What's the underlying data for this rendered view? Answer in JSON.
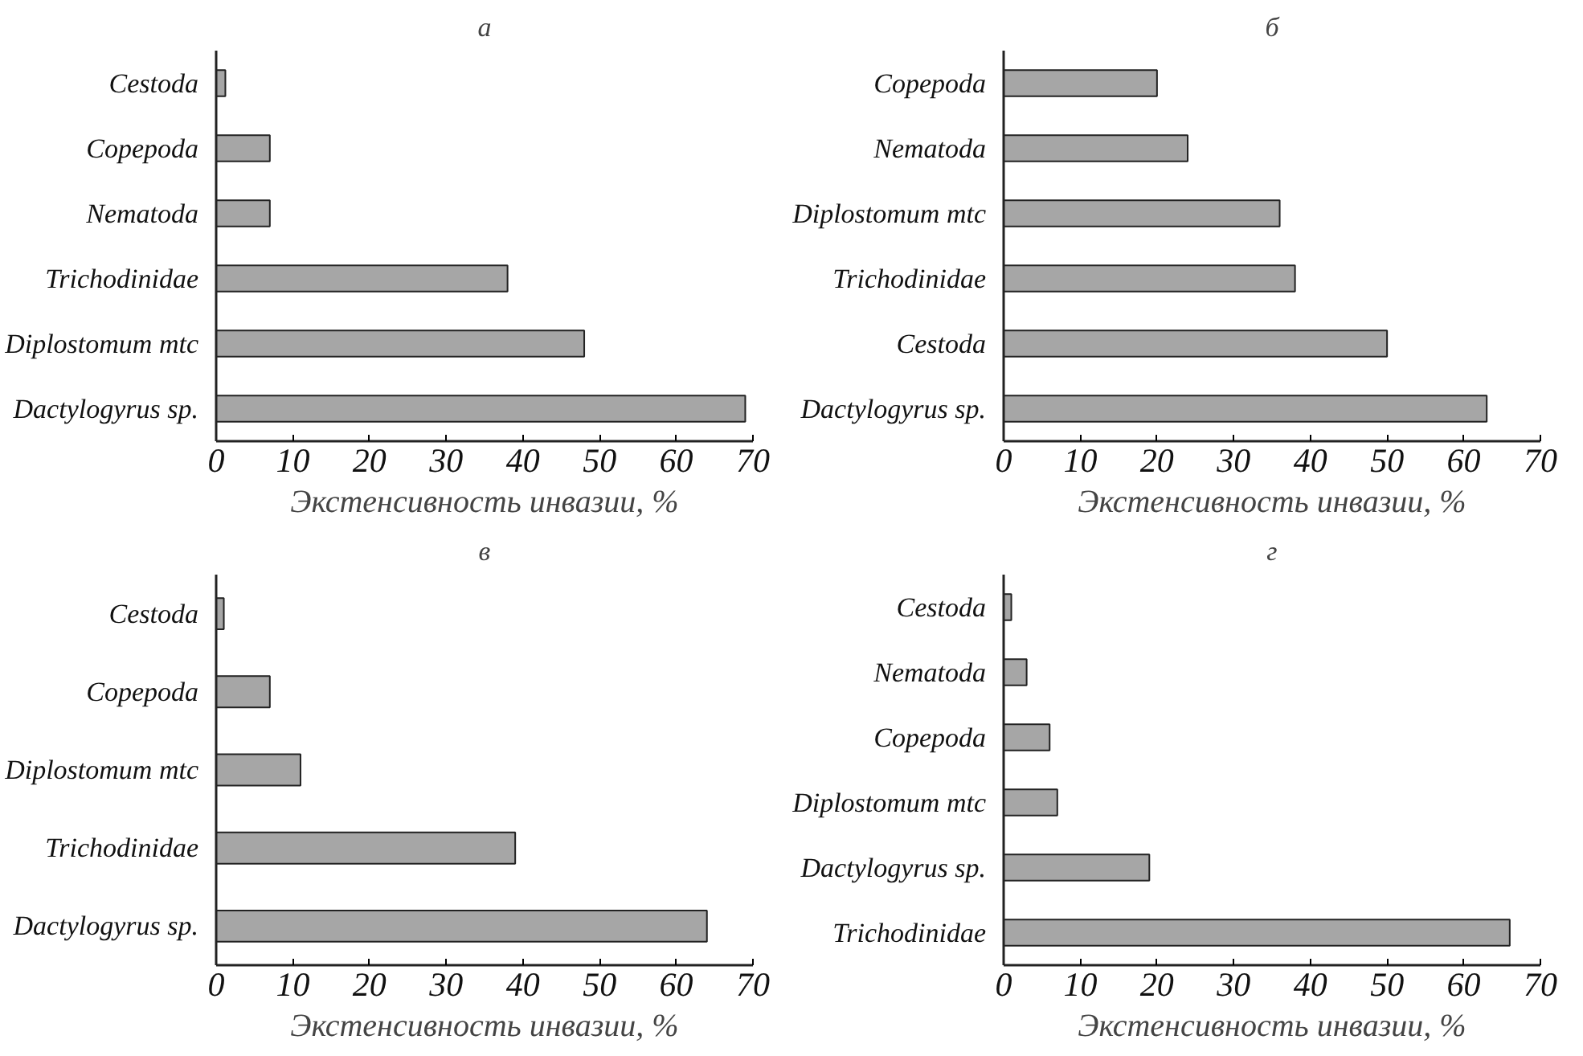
{
  "chart_data": [
    {
      "type": "bar",
      "orientation": "horizontal",
      "title": "а",
      "xlabel": "Экстенсивность инвазии, %",
      "categories": [
        "Cestoda",
        "Copepoda",
        "Nematoda",
        "Trichodinidae",
        "Diplostomum mtc",
        "Dactylogyrus sp."
      ],
      "values": [
        1.2,
        7,
        7,
        38,
        48,
        69
      ],
      "color": "#a6a6a6",
      "xlim": [
        0,
        70
      ],
      "xticks": [
        0,
        10,
        20,
        30,
        40,
        50,
        60,
        70
      ],
      "grid": false
    },
    {
      "type": "bar",
      "orientation": "horizontal",
      "title": "б",
      "xlabel": "Экстенсивность инвазии, %",
      "categories": [
        "Copepoda",
        "Nematoda",
        "Diplostomum mtc",
        "Trichodinidae",
        "Cestoda",
        "Dactylogyrus sp."
      ],
      "values": [
        20,
        24,
        36,
        38,
        50,
        63
      ],
      "color": "#a6a6a6",
      "xlim": [
        0,
        70
      ],
      "xticks": [
        0,
        10,
        20,
        30,
        40,
        50,
        60,
        70
      ],
      "grid": false
    },
    {
      "type": "bar",
      "orientation": "horizontal",
      "title": "в",
      "xlabel": "Экстенсивность инвазии, %",
      "categories": [
        "Cestoda",
        "Copepoda",
        "Diplostomum mtc",
        "Trichodinidae",
        "Dactylogyrus sp."
      ],
      "values": [
        1,
        7,
        11,
        39,
        64
      ],
      "color": "#a6a6a6",
      "xlim": [
        0,
        70
      ],
      "xticks": [
        0,
        10,
        20,
        30,
        40,
        50,
        60,
        70
      ],
      "grid": false
    },
    {
      "type": "bar",
      "orientation": "horizontal",
      "title": "г",
      "xlabel": "Экстенсивность инвазии, %",
      "categories": [
        "Cestoda",
        "Nematoda",
        "Copepoda",
        "Diplostomum mtc",
        "Dactylogyrus sp.",
        "Trichodinidae"
      ],
      "values": [
        1,
        3,
        6,
        7,
        19,
        66
      ],
      "color": "#a6a6a6",
      "xlim": [
        0,
        70
      ],
      "xticks": [
        0,
        10,
        20,
        30,
        40,
        50,
        60,
        70
      ],
      "grid": false
    }
  ]
}
